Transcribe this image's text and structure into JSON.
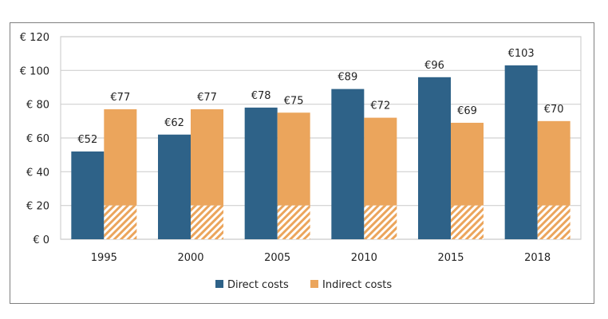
{
  "chart_data": {
    "type": "bar",
    "categories": [
      "1995",
      "2000",
      "2005",
      "2010",
      "2015",
      "2018"
    ],
    "series": [
      {
        "name": "Direct costs",
        "values": [
          52,
          62,
          78,
          89,
          96,
          103
        ],
        "color": "#2e6288"
      },
      {
        "name": "Indirect costs",
        "values": [
          77,
          77,
          75,
          72,
          69,
          70
        ],
        "color": "#eba55c",
        "hatched_portion": 20
      }
    ],
    "data_labels": {
      "Direct costs": [
        "€52",
        "€62",
        "€78",
        "€89",
        "€96",
        "€103"
      ],
      "Indirect costs": [
        "€77",
        "€77",
        "€75",
        "€72",
        "€69",
        "€70"
      ]
    },
    "y_ticks": [
      "€ 0",
      "€ 20",
      "€ 40",
      "€ 60",
      "€ 80",
      "€ 100",
      "€ 120"
    ],
    "ylim": [
      0,
      120
    ],
    "grid": true,
    "legend": "bottom",
    "title": "",
    "xlabel": "",
    "ylabel": ""
  }
}
